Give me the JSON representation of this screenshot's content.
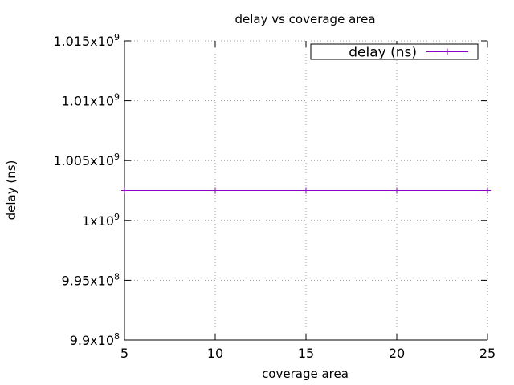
{
  "chart_data": {
    "type": "line",
    "title": "delay vs coverage area",
    "xlabel": "coverage area",
    "ylabel": "delay (ns)",
    "xlim": [
      5,
      25
    ],
    "ylim": [
      990000000,
      1015000000
    ],
    "x_ticks": [
      {
        "value": 5,
        "label": "5"
      },
      {
        "value": 10,
        "label": "10"
      },
      {
        "value": 15,
        "label": "15"
      },
      {
        "value": 20,
        "label": "20"
      },
      {
        "value": 25,
        "label": "25"
      }
    ],
    "y_ticks": [
      {
        "value": 990000000,
        "mantissa": "9.9x10",
        "exp": "8"
      },
      {
        "value": 995000000,
        "mantissa": "9.95x10",
        "exp": "8"
      },
      {
        "value": 1000000000,
        "mantissa": "1x10",
        "exp": "9"
      },
      {
        "value": 1005000000,
        "mantissa": "1.005x10",
        "exp": "9"
      },
      {
        "value": 1010000000,
        "mantissa": "1.01x10",
        "exp": "9"
      },
      {
        "value": 1015000000,
        "mantissa": "1.015x10",
        "exp": "9"
      }
    ],
    "grid": true,
    "legend_position": "top-right",
    "series": [
      {
        "name": "delay (ns)",
        "color": "#8b00c8",
        "marker": "plus",
        "x": [
          5,
          10,
          15,
          20,
          25
        ],
        "y": [
          1002500000,
          1002500000,
          1002500000,
          1002500000,
          1002500000
        ]
      }
    ]
  }
}
